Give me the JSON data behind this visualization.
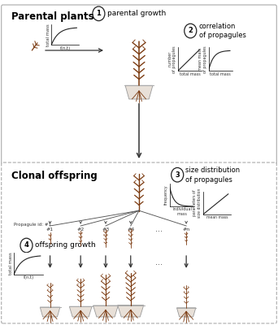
{
  "bg_color": "#ffffff",
  "section1_title": "Parental plants",
  "section2_title": "Clonal offspring",
  "step1_label": "parental growth",
  "step2_label": "correlation\nof propagules",
  "step3_label": "size distribution\nof propagules",
  "step4_label": "offspring growth",
  "propagule_labels": [
    "#1",
    "#2",
    "#3",
    "#4",
    "#n"
  ],
  "propagule_id_text": "Propagule id: #1",
  "fn_t_label": "f(n,t)",
  "number_propagules_label": "number\nof propagules",
  "mean_mass_propagules_label": "mean mass\nof propagules",
  "total_mass1": "total mass",
  "total_mass2": "total mass",
  "frequency_label": "frequency",
  "individual_mass_label": "individual\nmass",
  "parameters_label": "parameters of\nsize distribution",
  "mean_mass_label": "mean mass",
  "ellipsis": "...",
  "plant_brown": "#7B3A10",
  "pot_gray": "#b0a090",
  "arrow_color": "#333333",
  "border_solid": "#aaaaaa",
  "border_dash": "#999999",
  "text_dark": "#111111",
  "text_mid": "#444444",
  "circle_edge": "#222222"
}
